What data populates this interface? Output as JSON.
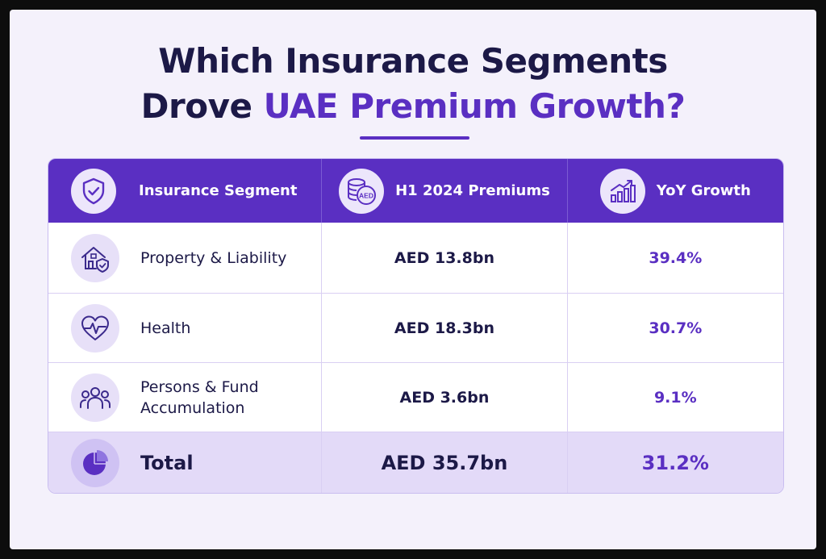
{
  "title": {
    "line1": "Which Insurance Segments",
    "line2_prefix": "Drove ",
    "line2_accent": "UAE Premium Growth?"
  },
  "colors": {
    "accent": "#5a2fc2",
    "title_text": "#1c1947",
    "header_bg": "#5a2fc2",
    "total_bg": "#e3daf8",
    "page_bg": "#f4f1fb"
  },
  "chart_data": {
    "type": "table",
    "columns": [
      {
        "label": "Insurance Segment",
        "icon": "shield-check-icon"
      },
      {
        "label": "H1 2024 Premiums",
        "icon": "aed-coins-icon",
        "icon_text": "AED"
      },
      {
        "label": "YoY Growth",
        "icon": "growth-chart-icon"
      }
    ],
    "rows": [
      {
        "segment": "Property & Liability",
        "premium": "AED 13.8bn",
        "growth": "39.4%",
        "icon": "house-shield-icon"
      },
      {
        "segment": "Health",
        "premium": "AED 18.3bn",
        "growth": "30.7%",
        "icon": "heart-pulse-icon"
      },
      {
        "segment": "Persons & Fund Accumulation",
        "segment_lines": [
          "Persons & Fund",
          "Accumulation"
        ],
        "premium": "AED 3.6bn",
        "growth": "9.1%",
        "icon": "people-group-icon"
      }
    ],
    "total": {
      "segment": "Total",
      "premium": "AED 35.7bn",
      "growth": "31.2%",
      "icon": "pie-chart-icon"
    },
    "values": {
      "premiums_aed_bn": [
        13.8,
        18.3,
        3.6
      ],
      "total_premium_aed_bn": 35.7,
      "yoy_growth_pct": [
        39.4,
        30.7,
        9.1
      ],
      "total_yoy_growth_pct": 31.2
    }
  }
}
